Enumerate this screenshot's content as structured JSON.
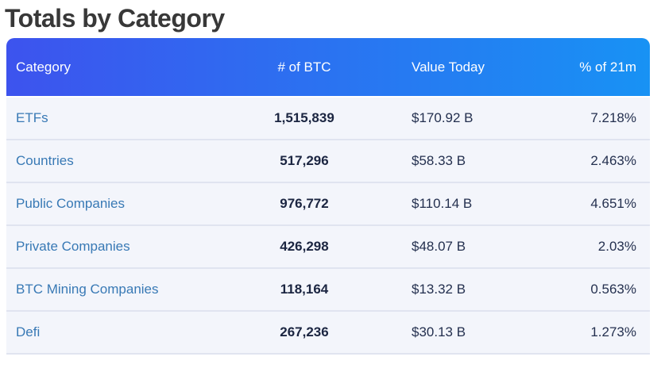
{
  "page": {
    "title": "Totals by Category"
  },
  "table": {
    "columns": [
      {
        "label": "Category"
      },
      {
        "label": "# of BTC"
      },
      {
        "label": "Value Today"
      },
      {
        "label": "% of 21m"
      }
    ],
    "rows": [
      {
        "category": "ETFs",
        "btc": "1,515,839",
        "value": "$170.92 B",
        "pct": "7.218%"
      },
      {
        "category": "Countries",
        "btc": "517,296",
        "value": "$58.33 B",
        "pct": "2.463%"
      },
      {
        "category": "Public Companies",
        "btc": "976,772",
        "value": "$110.14 B",
        "pct": "4.651%"
      },
      {
        "category": "Private Companies",
        "btc": "426,298",
        "value": "$48.07 B",
        "pct": "2.03%"
      },
      {
        "category": "BTC Mining Companies",
        "btc": "118,164",
        "value": "$13.32 B",
        "pct": "0.563%"
      },
      {
        "category": "Defi",
        "btc": "267,236",
        "value": "$30.13 B",
        "pct": "1.273%"
      }
    ]
  },
  "colors": {
    "header_gradient_left": "#3d53ee",
    "header_gradient_right": "#1892f4",
    "header_text": "#ffffff",
    "row_background": "#f3f5fb",
    "row_divider": "#e0e4f0",
    "category_link": "#3879b5",
    "btc_number": "#1b2541",
    "value_text": "#24304f",
    "title_text": "#383838"
  }
}
